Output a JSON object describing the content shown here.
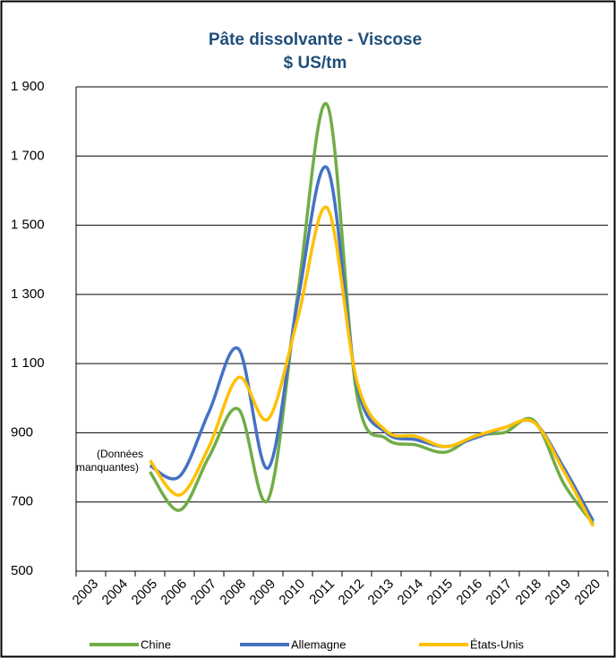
{
  "chart_data": {
    "type": "line",
    "title": "Pâte dissolvante - Viscose",
    "subtitle": "$ US/tm",
    "annotation": "(Données manquantes)",
    "categories": [
      "2003",
      "2004",
      "2005",
      "2006",
      "2007",
      "2008",
      "2009",
      "2010",
      "2011",
      "2012",
      "2013",
      "2014",
      "2015",
      "2016",
      "2017",
      "2018",
      "2019",
      "2020"
    ],
    "series": [
      {
        "name": "Chine",
        "color": "#70ad47",
        "values": [
          null,
          null,
          787,
          676,
          831,
          968,
          707,
          1300,
          1848,
          1012,
          883,
          865,
          844,
          891,
          901,
          935,
          754,
          637
        ]
      },
      {
        "name": "Allemagne",
        "color": "#4472c4",
        "values": [
          null,
          null,
          805,
          774,
          961,
          1142,
          798,
          1280,
          1665,
          1040,
          900,
          880,
          860,
          885,
          915,
          930,
          800,
          645
        ]
      },
      {
        "name": "États-Unis",
        "color": "#ffc000",
        "values": [
          null,
          null,
          820,
          720,
          860,
          1060,
          940,
          1230,
          1550,
          1050,
          905,
          890,
          860,
          890,
          915,
          930,
          790,
          630
        ]
      }
    ],
    "ylim": [
      500,
      1900
    ],
    "yticks": [
      500,
      700,
      900,
      {
        "value": 1100,
        "label": "1 100"
      },
      {
        "value": 1300,
        "label": "1 300"
      },
      {
        "value": 1500,
        "label": "1 500"
      },
      {
        "value": 1700,
        "label": "1 700"
      },
      {
        "value": 1900,
        "label": "1 900"
      }
    ],
    "grid": true,
    "legend": "bottom"
  }
}
